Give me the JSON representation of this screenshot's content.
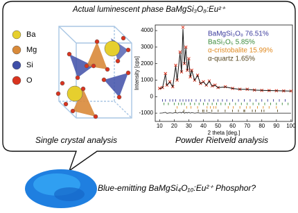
{
  "header": {
    "title": "Actual luminescent phase BaMgSi₃O₈:Eu²⁺"
  },
  "legend": [
    {
      "label": "Ba",
      "color": "#e6cf2e"
    },
    {
      "label": "Mg",
      "color": "#d98a3a"
    },
    {
      "label": "Si",
      "color": "#3f4fa8"
    },
    {
      "label": "O",
      "color": "#d9341f"
    }
  ],
  "captions": {
    "left": "Single crystal analysis",
    "right": "Powder Rietveld analysis",
    "bottom": "Blue-emitting BaMgSi₄O₁₀:Eu²⁺ Phosphor?"
  },
  "chart_data": {
    "type": "rietveld",
    "x_label": "2 theta [deg.]",
    "y_label": "Intensity [cps]",
    "xlim": [
      7,
      101
    ],
    "ylim": [
      -1500,
      4340
    ],
    "xticks": [
      10,
      20,
      30,
      40,
      50,
      60,
      70,
      80,
      90,
      100
    ],
    "yticks": [
      -1000,
      0,
      1000,
      2000,
      3000,
      4000
    ],
    "observed_color": "#d9341f",
    "calculated_color": "#111111",
    "x": [
      10,
      12,
      14,
      15,
      17,
      19,
      21,
      22,
      24,
      25,
      26,
      27,
      28,
      29,
      30,
      31,
      32,
      34,
      36,
      38,
      40,
      42,
      44,
      46,
      48,
      50,
      55,
      60,
      65,
      70,
      75,
      80,
      85,
      90,
      95,
      100
    ],
    "observed": [
      500,
      550,
      1400,
      700,
      900,
      600,
      1900,
      1000,
      2700,
      1500,
      4200,
      2000,
      3000,
      1600,
      2300,
      1200,
      1600,
      1000,
      1300,
      800,
      900,
      700,
      950,
      650,
      700,
      550,
      600,
      500,
      450,
      450,
      400,
      380,
      370,
      360,
      350,
      340
    ],
    "calculated": [
      480,
      540,
      1350,
      690,
      880,
      600,
      1850,
      990,
      2650,
      1480,
      4100,
      1980,
      2950,
      1580,
      2250,
      1190,
      1570,
      990,
      1280,
      790,
      890,
      690,
      930,
      640,
      690,
      545,
      590,
      495,
      445,
      445,
      395,
      378,
      368,
      358,
      348,
      338
    ],
    "difference": [
      -1000,
      -990,
      -950,
      -1010,
      -980,
      -1000,
      -960,
      -1000,
      -950,
      -990,
      -920,
      -1010,
      -960,
      -990,
      -950,
      -1000,
      -970,
      -1000,
      -980,
      -1000,
      -990,
      -1000,
      -985,
      -1000,
      -995,
      -1000,
      -995,
      -1000,
      -1000,
      -1000,
      -1000,
      -1000,
      -1000,
      -1000,
      -1000,
      -1000
    ],
    "phases": [
      {
        "name": "BaMgSi₃O₈ 76.51%",
        "color": "#3a3a9c",
        "reflections": [
          12,
          14,
          17,
          19,
          21,
          24,
          26,
          28,
          30,
          32,
          35,
          38,
          41,
          44,
          47,
          50,
          53,
          56,
          60,
          64,
          68,
          72,
          76,
          80,
          84,
          88,
          92,
          96
        ]
      },
      {
        "name": "BaSi₂O₅ 5.85%",
        "color": "#3a8a3a",
        "reflections": [
          13,
          16,
          20,
          23,
          25,
          27,
          31,
          34,
          37,
          40,
          43,
          46,
          49,
          52,
          55,
          58,
          62,
          66,
          70,
          74,
          78,
          82,
          86,
          90,
          94,
          98
        ]
      },
      {
        "name": "α-cristobalite 15.99%",
        "color": "#e08a20",
        "reflections": [
          22,
          28.5,
          31.5,
          36,
          42.5,
          44.8,
          47,
          48.6,
          57,
          60.5,
          65,
          69.5,
          72,
          77,
          81,
          85,
          90
        ]
      },
      {
        "name": "α-quartz 1.65%",
        "color": "#5a4a22",
        "reflections": [
          20.9,
          26.6,
          36.5,
          39.5,
          40.3,
          42.4,
          45.8,
          50.1,
          54.9,
          59.9,
          64,
          67.7,
          68.3,
          73.5,
          75.6,
          79.9,
          81.5,
          90.8
        ]
      }
    ]
  }
}
